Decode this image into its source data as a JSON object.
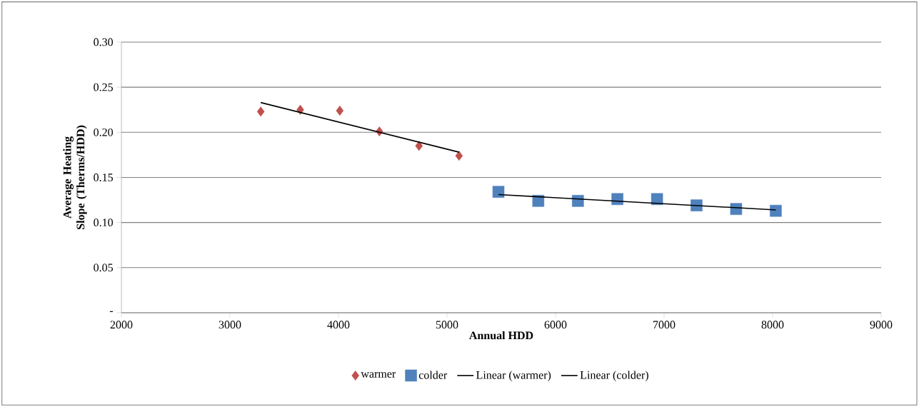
{
  "chart_data": {
    "type": "scatter",
    "xlabel": "Annual HDD",
    "ylabel": "Average Heating Slope (Therms/HDD)",
    "xlim": [
      2000,
      9000
    ],
    "xticks": [
      2000,
      3000,
      4000,
      5000,
      6000,
      7000,
      8000,
      9000
    ],
    "ylim": [
      0,
      0.3
    ],
    "yticks": [
      {
        "value": 0,
        "label": "-"
      },
      {
        "value": 0.05,
        "label": "0.05"
      },
      {
        "value": 0.1,
        "label": "0.10"
      },
      {
        "value": 0.15,
        "label": "0.15"
      },
      {
        "value": 0.2,
        "label": "0.20"
      },
      {
        "value": 0.25,
        "label": "0.25"
      },
      {
        "value": 0.3,
        "label": "0.30"
      }
    ],
    "grid": "y",
    "legend": "bottom",
    "series": [
      {
        "name": "warmer",
        "marker": "diamond",
        "color": "#c0504d",
        "x": [
          3284,
          3648,
          4012,
          4377,
          4742,
          5111
        ],
        "values": [
          0.223,
          0.225,
          0.224,
          0.201,
          0.185,
          0.174
        ]
      },
      {
        "name": "colder",
        "marker": "square",
        "color": "#4f81bd",
        "x": [
          5474,
          5841,
          6206,
          6570,
          6935,
          7299,
          7664,
          8029
        ],
        "values": [
          0.134,
          0.124,
          0.124,
          0.126,
          0.126,
          0.119,
          0.115,
          0.113
        ]
      },
      {
        "name": "Linear (warmer)",
        "type": "line",
        "marker": "none",
        "line_style": "solid",
        "color": "#000000",
        "x": [
          3284,
          5111
        ],
        "values": [
          0.233,
          0.178
        ]
      },
      {
        "name": "Linear (colder)",
        "type": "line",
        "marker": "none",
        "line_style": "solid",
        "color": "#000000",
        "x": [
          5474,
          8029
        ],
        "values": [
          0.131,
          0.114
        ]
      }
    ]
  }
}
